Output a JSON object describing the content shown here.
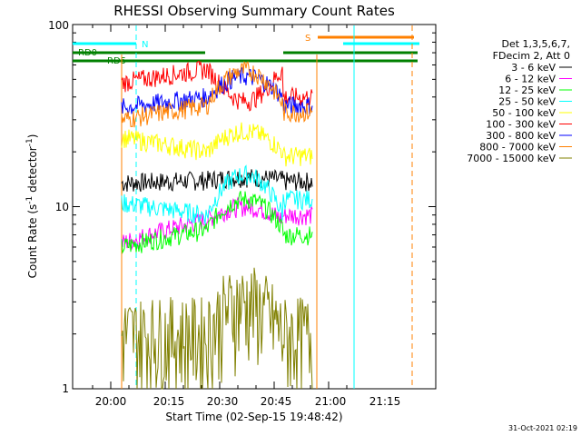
{
  "chart_data": {
    "type": "line",
    "title": "RHESSI Observing Summary Count Rates",
    "xlabel": "Start Time (02-Sep-15 19:48:42)",
    "ylabel": "Count Rate (s",
    "ylabel_sup": "-1",
    "ylabel_end": " detector",
    "ylabel_close": ")",
    "y_scale": "log",
    "ylim": [
      1,
      100
    ],
    "xlim": [
      "19:48:42",
      "21:28:00"
    ],
    "y_ticks": [
      "1",
      "10",
      "100"
    ],
    "x_ticks": [
      "20:00",
      "20:15",
      "20:30",
      "20:45",
      "21:00",
      "21:15"
    ],
    "legend_header": [
      "Det 1,3,5,6,7,",
      "FDecim 2, Att 0"
    ],
    "series": [
      {
        "name": "3 - 6 keV",
        "color": "#000000",
        "levels": [
          13.5,
          14,
          14.5,
          13.8
        ]
      },
      {
        "name": "6 - 12 keV",
        "color": "#ff00ff",
        "levels": [
          6.3,
          8.5,
          10,
          9
        ]
      },
      {
        "name": "12 - 25 keV",
        "color": "#00ff00",
        "levels": [
          6,
          7.5,
          11,
          7
        ]
      },
      {
        "name": "25 - 50 keV",
        "color": "#00ffff",
        "levels": [
          10.5,
          9,
          15,
          11
        ]
      },
      {
        "name": "50 - 100 keV",
        "color": "#ffff00",
        "levels": [
          24,
          20,
          26,
          19
        ]
      },
      {
        "name": "100 - 300 keV",
        "color": "#ff0000",
        "levels": [
          48,
          57,
          38,
          40
        ]
      },
      {
        "name": "300 - 800 keV",
        "color": "#0000ff",
        "levels": [
          35,
          40,
          52,
          36
        ]
      },
      {
        "name": "800 - 7000 keV",
        "color": "#ff8000",
        "levels": [
          30,
          36,
          56,
          33
        ]
      },
      {
        "name": "7000 - 15000 keV",
        "color": "#808000",
        "levels": [
          2,
          2,
          3,
          2
        ]
      }
    ],
    "annotations": [
      {
        "text": "RD0",
        "color": "#008000"
      },
      {
        "text": "RD5",
        "color": "#008000"
      },
      {
        "text": "N",
        "color": "#00ffff"
      },
      {
        "text": "S",
        "color": "#ff8000"
      }
    ],
    "grid": false,
    "legend_position": "right"
  },
  "timestamp": "31-Oct-2021 02:19"
}
